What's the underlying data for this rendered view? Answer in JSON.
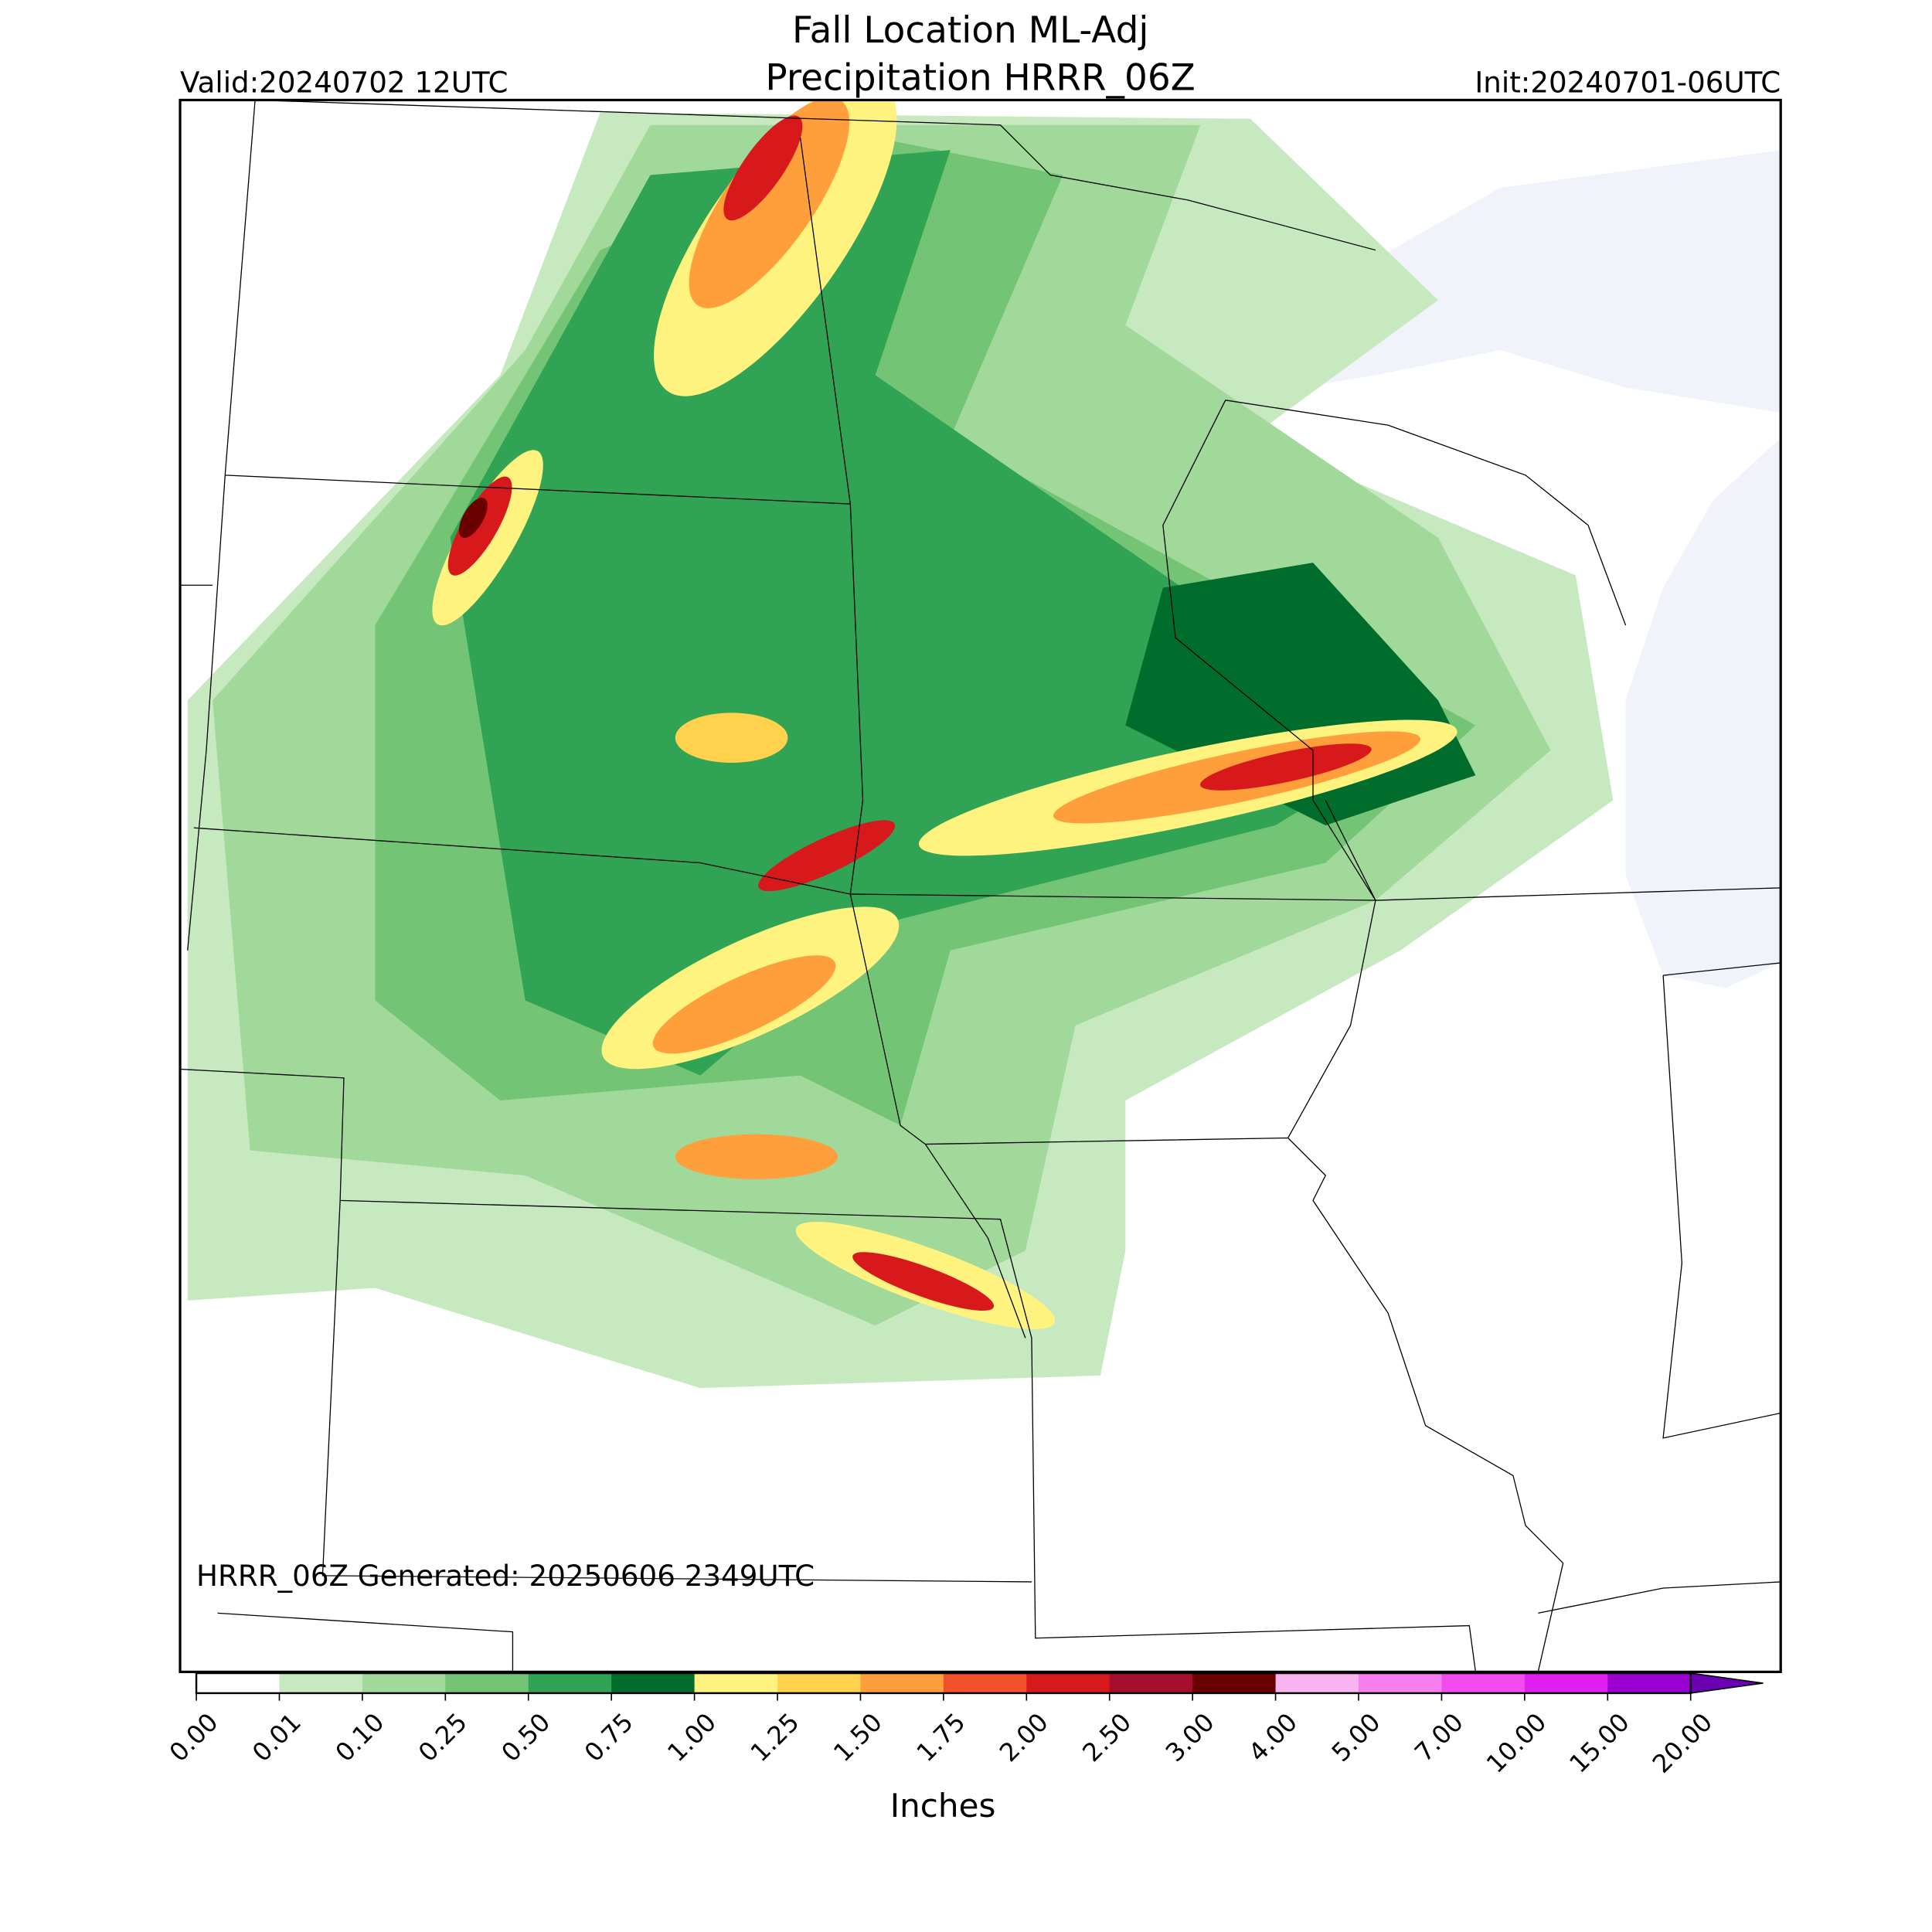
{
  "header": {
    "title_line1": "Fall Location ML-Adj",
    "title_line2": "Precipitation HRRR_06Z",
    "valid": "Valid:20240702 12UTC",
    "init": "Init:20240701-06UTC"
  },
  "map": {
    "footnote": "HRRR_06Z Generated: 20250606 2349UTC"
  },
  "colorbar": {
    "label": "Inches",
    "ticks": [
      "0.00",
      "0.01",
      "0.10",
      "0.25",
      "0.50",
      "0.75",
      "1.00",
      "1.25",
      "1.50",
      "1.75",
      "2.00",
      "2.50",
      "3.00",
      "4.00",
      "5.00",
      "7.00",
      "10.00",
      "15.00",
      "20.00"
    ],
    "colors": [
      "#ffffff",
      "#c7e9c0",
      "#a1d99b",
      "#74c476",
      "#31a354",
      "#006d2c",
      "#fff380",
      "#ffd14d",
      "#fe9f3c",
      "#f2502c",
      "#d7191c",
      "#a50f2d",
      "#6b0000",
      "#f9b3f0",
      "#f77ff0",
      "#f24cf0",
      "#e020f0",
      "#9a00d0",
      "#6a00b0"
    ]
  }
}
